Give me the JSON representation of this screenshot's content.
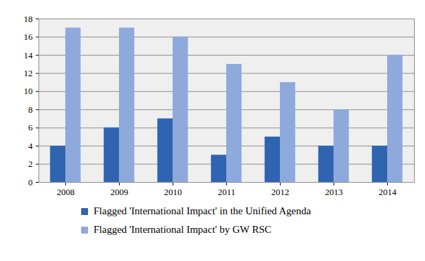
{
  "chart_data": {
    "type": "bar",
    "categories": [
      "2008",
      "2009",
      "2010",
      "2011",
      "2012",
      "2013",
      "2014"
    ],
    "series": [
      {
        "name": "Flagged 'International Impact' in the Unified Agenda",
        "color": "#2F64B0",
        "values": [
          4,
          6,
          7,
          3,
          5,
          4,
          4
        ]
      },
      {
        "name": "Flagged 'International Impact' by GW RSC",
        "color": "#8EA9DB",
        "values": [
          17,
          17,
          16,
          13,
          11,
          8,
          14
        ]
      }
    ],
    "ylim": [
      0,
      18
    ],
    "yticks": [
      0,
      2,
      4,
      6,
      8,
      10,
      12,
      14,
      16,
      18
    ],
    "grid": true,
    "legend": "bottom"
  }
}
